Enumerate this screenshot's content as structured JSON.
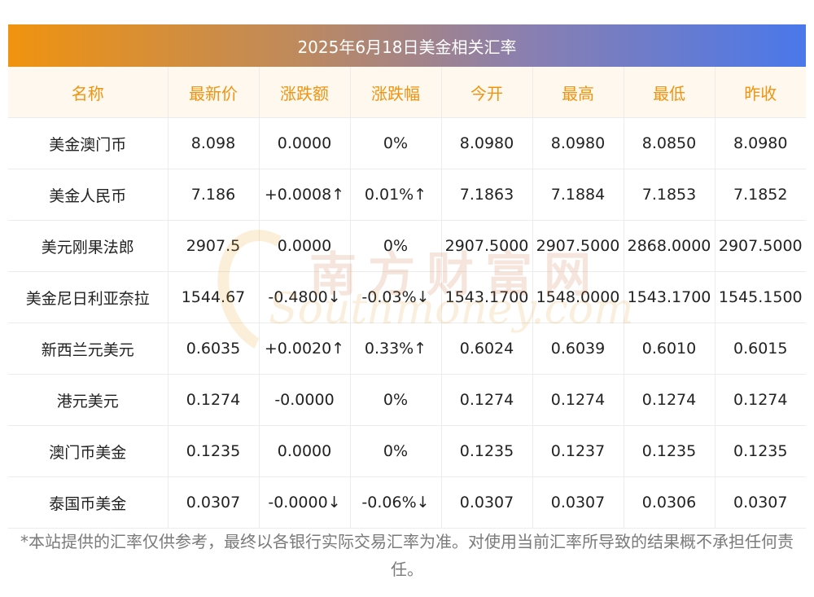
{
  "title": "2025年6月18日美金相关汇率",
  "columns": [
    "名称",
    "最新价",
    "涨跌额",
    "涨跌幅",
    "今开",
    "最高",
    "最低",
    "昨收"
  ],
  "rows": [
    {
      "name": "美金澳门币",
      "latest": "8.098",
      "change": "0.0000",
      "pct": "0%",
      "open": "8.0980",
      "high": "8.0980",
      "low": "8.0850",
      "prev": "8.0980",
      "dir": "flat"
    },
    {
      "name": "美金人民币",
      "latest": "7.186",
      "change": "+0.0008↑",
      "pct": "0.01%↑",
      "open": "7.1863",
      "high": "7.1884",
      "low": "7.1853",
      "prev": "7.1852",
      "dir": "up"
    },
    {
      "name": "美元刚果法郎",
      "latest": "2907.5",
      "change": "0.0000",
      "pct": "0%",
      "open": "2907.5000",
      "high": "2907.5000",
      "low": "2868.0000",
      "prev": "2907.5000",
      "dir": "flat"
    },
    {
      "name": "美金尼日利亚奈拉",
      "latest": "1544.67",
      "change": "-0.4800↓",
      "pct": "-0.03%↓",
      "open": "1543.1700",
      "high": "1548.0000",
      "low": "1543.1700",
      "prev": "1545.1500",
      "dir": "down"
    },
    {
      "name": "新西兰元美元",
      "latest": "0.6035",
      "change": "+0.0020↑",
      "pct": "0.33%↑",
      "open": "0.6024",
      "high": "0.6039",
      "low": "0.6010",
      "prev": "0.6015",
      "dir": "up"
    },
    {
      "name": "港元美元",
      "latest": "0.1274",
      "change": "-0.0000",
      "pct": "0%",
      "open": "0.1274",
      "high": "0.1274",
      "low": "0.1274",
      "prev": "0.1274",
      "dir": "flat"
    },
    {
      "name": "澳门币美金",
      "latest": "0.1235",
      "change": "0.0000",
      "pct": "0%",
      "open": "0.1235",
      "high": "0.1237",
      "low": "0.1235",
      "prev": "0.1235",
      "dir": "flat"
    },
    {
      "name": "泰国币美金",
      "latest": "0.0307",
      "change": "-0.0000↓",
      "pct": "-0.06%↓",
      "open": "0.0307",
      "high": "0.0307",
      "low": "0.0306",
      "prev": "0.0307",
      "dir": "down"
    }
  ],
  "watermark": {
    "cn": "南方财富网",
    "en": "Southmoney.com"
  },
  "footnote": "*本站提供的汇率仅供参考，最终以各银行实际交易汇率为准。对使用当前汇率所导致的结果概不承担任何责任。",
  "colors": {
    "up": "#e8262b",
    "down": "#1e8a1e",
    "header_text": "#f0930f",
    "header_bg": "#fff8ef"
  }
}
